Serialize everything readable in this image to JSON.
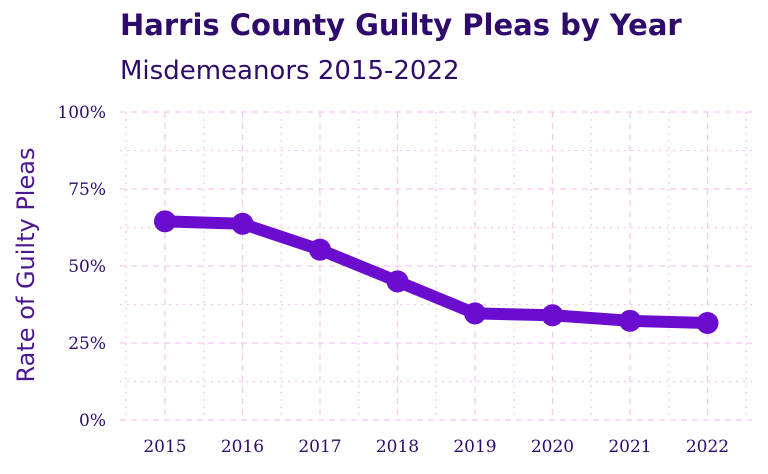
{
  "chart_data": {
    "type": "line",
    "title": "Harris County Guilty Pleas by Year",
    "subtitle": "Misdemeanors 2015-2022",
    "xlabel": "",
    "ylabel": "Rate of Guilty Pleas",
    "categories": [
      "2015",
      "2016",
      "2017",
      "2018",
      "2019",
      "2020",
      "2021",
      "2022"
    ],
    "values": [
      0.645,
      0.637,
      0.553,
      0.45,
      0.346,
      0.34,
      0.322,
      0.315
    ],
    "ylim": [
      0,
      1
    ],
    "yticks": [
      0,
      0.25,
      0.5,
      0.75,
      1
    ],
    "ytick_labels": [
      "0%",
      "25%",
      "50%",
      "75%",
      "100%"
    ],
    "grid": true,
    "legend": "none",
    "line_color": "#6a0dce",
    "grid_color": "#f5c6f0",
    "text_color": "#2e0a6b"
  }
}
